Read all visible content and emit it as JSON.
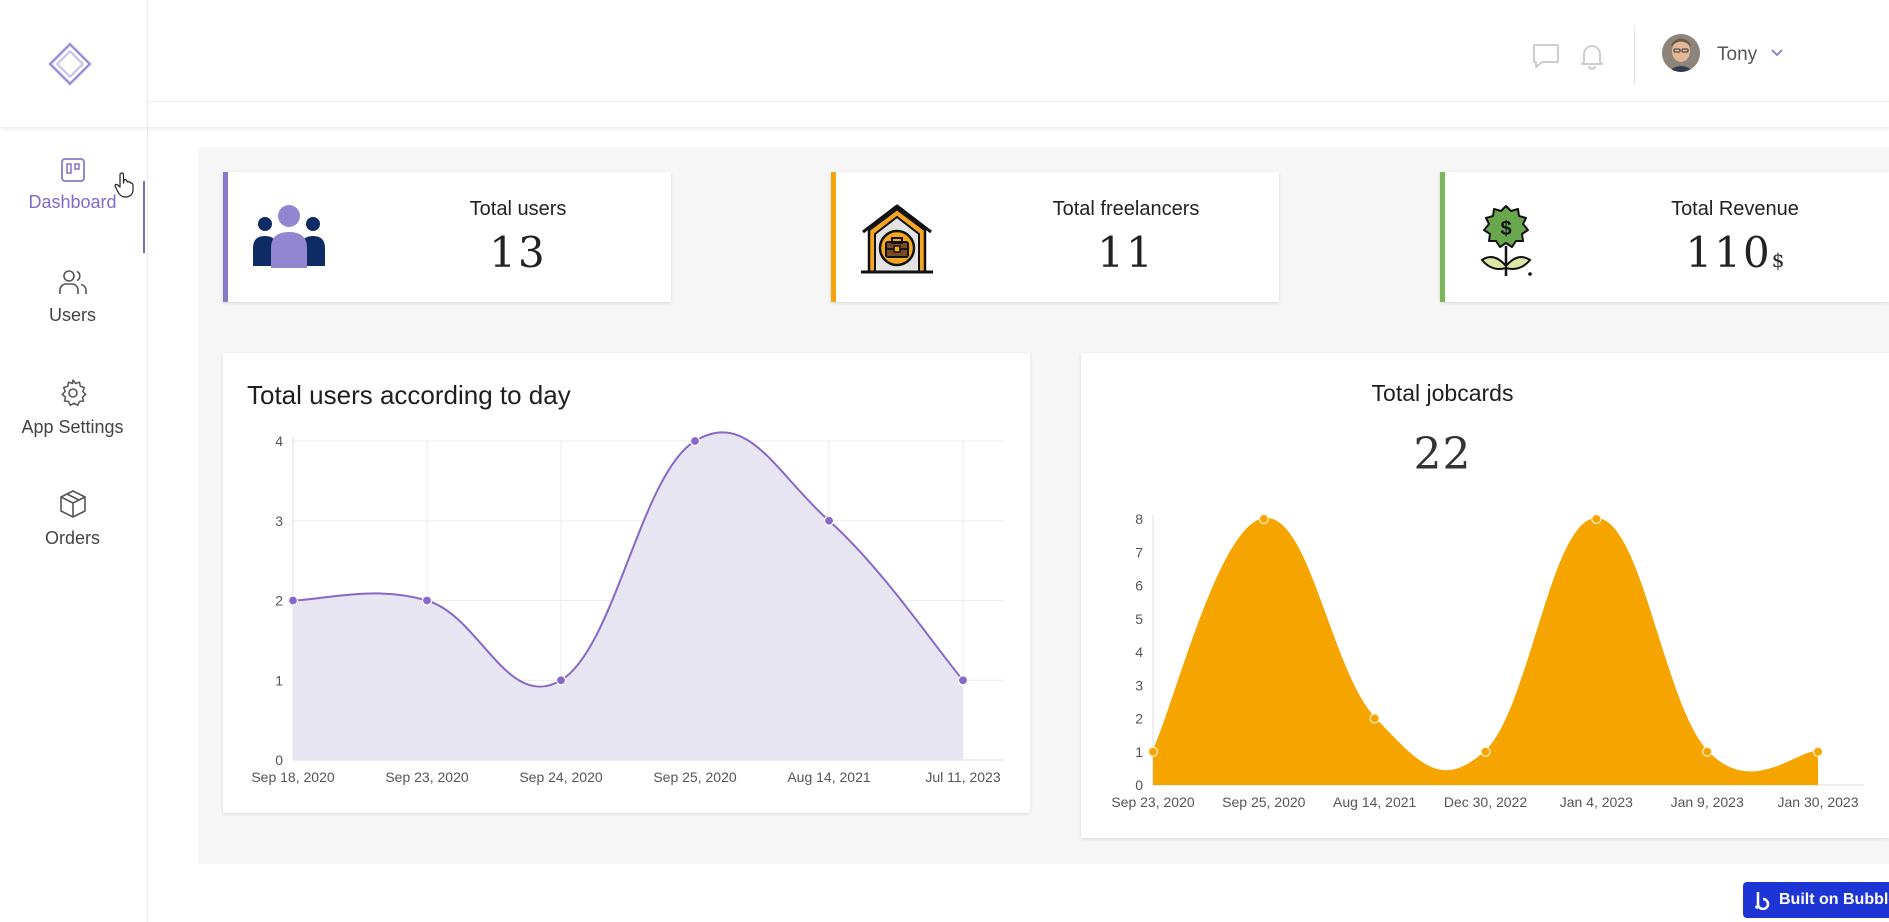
{
  "header": {
    "user_name": "Tony",
    "icons": [
      "logo-icon",
      "chat-icon",
      "bell-icon",
      "chevron-down-icon"
    ]
  },
  "sidebar": {
    "items": [
      {
        "label": "Dashboard",
        "icon": "dashboard-icon",
        "active": true
      },
      {
        "label": "Users",
        "icon": "users-icon",
        "active": false
      },
      {
        "label": "App Settings",
        "icon": "gear-icon",
        "active": false
      },
      {
        "label": "Orders",
        "icon": "box-icon",
        "active": false
      }
    ]
  },
  "stats": [
    {
      "title": "Total users",
      "value": "13",
      "unit": "",
      "icon": "people-group-icon",
      "accent": "#8a79c8"
    },
    {
      "title": "Total freelancers",
      "value": "11",
      "unit": "",
      "icon": "house-briefcase-icon",
      "accent": "#f5a30a"
    },
    {
      "title": "Total Revenue",
      "value": "110",
      "unit": "$",
      "icon": "money-plant-icon",
      "accent": "#7cb65b"
    }
  ],
  "badge": {
    "label": "Built on Bubble"
  },
  "chart_data": [
    {
      "type": "line",
      "title": "Total users according to day",
      "categories": [
        "Sep 18, 2020",
        "Sep 23, 2020",
        "Sep 24, 2020",
        "Sep 25, 2020",
        "Aug 14, 2021",
        "Jul 11, 2023"
      ],
      "values": [
        2,
        2,
        1,
        4,
        3,
        1
      ],
      "ylim": [
        0,
        4
      ],
      "yticks": [
        0,
        1,
        2,
        3,
        4
      ],
      "grid": true,
      "fill": true,
      "color": "#8868c6",
      "fill_color": "#e8e5f3"
    },
    {
      "type": "area",
      "title": "Total jobcards",
      "total": "22",
      "categories": [
        "Sep 23, 2020",
        "Sep 25, 2020",
        "Aug 14, 2021",
        "Dec 30, 2022",
        "Jan 4, 2023",
        "Jan 9, 2023",
        "Jan 30, 2023"
      ],
      "values": [
        1,
        8,
        2,
        1,
        8,
        1,
        1
      ],
      "ylim": [
        0,
        8
      ],
      "yticks": [
        0,
        1,
        2,
        3,
        4,
        5,
        6,
        7,
        8
      ],
      "grid": false,
      "color": "#f5a400",
      "fill_color": "#f5a400"
    }
  ]
}
